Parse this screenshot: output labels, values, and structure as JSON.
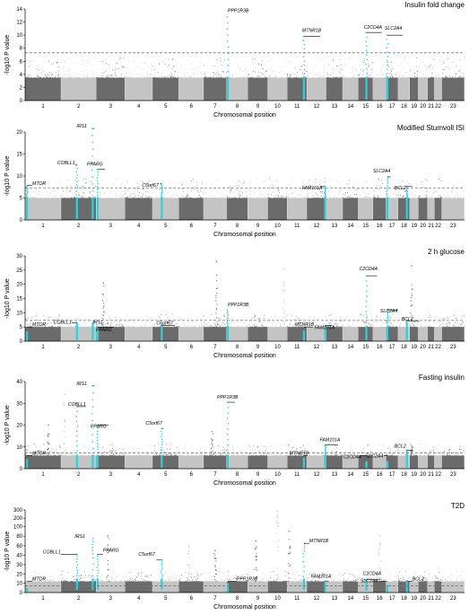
{
  "colors": {
    "dark_chrom": "#6b6b6b",
    "light_chrom": "#c4c4c4",
    "highlight": "#2fd0dc",
    "threshold": "#777777",
    "label_line": "#000000"
  },
  "y_axis_label": "-log10 P value",
  "x_axis_label": "Chromosomal position",
  "chromosomes": [
    "1",
    "2",
    "3",
    "4",
    "5",
    "6",
    "7",
    "8",
    "9",
    "10",
    "11",
    "12",
    "13",
    "14",
    "15",
    "16",
    "17",
    "18",
    "19",
    "20",
    "21",
    "22",
    "23"
  ],
  "chart_data": [
    {
      "type": "scatter",
      "title": "Insulin fold change",
      "xlabel": "Chromosomal position",
      "ylabel": "-log10 P value",
      "ylim": [
        0,
        14
      ],
      "yticks": [
        0,
        2,
        4,
        6,
        8,
        10,
        12,
        14
      ],
      "threshold": 7.3,
      "background_peak": 3.5,
      "grid": false,
      "loci": [
        {
          "gene": "PPP1R3B",
          "chrom": 8,
          "pos": 0.05,
          "p": 12.8
        },
        {
          "gene": "MTNR1B",
          "chrom": 11,
          "pos": 0.85,
          "p": 9.8
        },
        {
          "gene": "C2CD4A",
          "chrom": 15,
          "pos": 0.55,
          "p": 10.4
        },
        {
          "gene": "SLC2A4",
          "chrom": 17,
          "pos": 0.1,
          "p": 10.0
        }
      ]
    },
    {
      "type": "scatter",
      "title": "Modified Stumvoll ISI",
      "xlabel": "Chromosomal position",
      "ylabel": "-log10 P value",
      "ylim": [
        0,
        20
      ],
      "yticks": [
        0,
        5,
        10,
        15,
        20
      ],
      "threshold": 7.3,
      "background_peak": 5,
      "grid": false,
      "loci": [
        {
          "gene": "MTOR",
          "chrom": 1,
          "pos": 0.05,
          "p": 7.8
        },
        {
          "gene": "IRS1",
          "chrom": 2,
          "pos": 0.9,
          "p": 20.8
        },
        {
          "gene": "COBLL1",
          "chrom": 2,
          "pos": 0.45,
          "p": 12.5
        },
        {
          "gene": "PPARG",
          "chrom": 3,
          "pos": 0.05,
          "p": 11.5
        },
        {
          "gene": "C5orf67",
          "chrom": 5,
          "pos": 0.35,
          "p": 8.2
        },
        {
          "gene": "FAM101A",
          "chrom": 12,
          "pos": 0.95,
          "p": 7.6
        },
        {
          "gene": "SLC2A4",
          "chrom": 17,
          "pos": 0.1,
          "p": 9.8
        },
        {
          "gene": "BCL2",
          "chrom": 18,
          "pos": 0.75,
          "p": 7.6
        }
      ]
    },
    {
      "type": "scatter",
      "title": "2 h glucose",
      "xlabel": "Chromosomal position",
      "ylabel": "-log10 P value",
      "ylim": [
        0,
        30
      ],
      "yticks": [
        0,
        5,
        10,
        15,
        20,
        25,
        30
      ],
      "threshold": 7.3,
      "background_peak": 5,
      "grid": false,
      "loci": [
        {
          "gene": "MTOR",
          "chrom": 1,
          "pos": 0.05,
          "p": 3.5
        },
        {
          "gene": "COBLL1",
          "chrom": 2,
          "pos": 0.45,
          "p": 6.5
        },
        {
          "gene": "IRS1",
          "chrom": 2,
          "pos": 0.9,
          "p": 6.5
        },
        {
          "gene": "PPARG",
          "chrom": 3,
          "pos": 0.05,
          "p": 5.0
        },
        {
          "gene": "C5orf67",
          "chrom": 5,
          "pos": 0.35,
          "p": 5.5
        },
        {
          "gene": "PPP1R3B",
          "chrom": 8,
          "pos": 0.05,
          "p": 11.0
        },
        {
          "gene": "MTNR1B",
          "chrom": 11,
          "pos": 0.85,
          "p": 3.8
        },
        {
          "gene": "FAM101A",
          "chrom": 12,
          "pos": 0.95,
          "p": 5.5
        },
        {
          "gene": "C2CD4A",
          "chrom": 15,
          "pos": 0.55,
          "p": 23.0
        },
        {
          "gene": "SLC2A4",
          "chrom": 17,
          "pos": 0.1,
          "p": 11.0
        },
        {
          "gene": "BCL2",
          "chrom": 18,
          "pos": 0.75,
          "p": 7.0
        }
      ],
      "background_spikes": [
        {
          "chrom": 3,
          "pos": 0.25,
          "p": 20.5
        },
        {
          "chrom": 7,
          "pos": 0.55,
          "p": 28.0
        },
        {
          "chrom": 10,
          "pos": 0.85,
          "p": 25.5
        },
        {
          "chrom": 19,
          "pos": 0.2,
          "p": 26.5
        }
      ]
    },
    {
      "type": "scatter",
      "title": "Fasting insulin",
      "xlabel": "Chromosomal position",
      "ylabel": "-log10 P value",
      "ylim": [
        0,
        40
      ],
      "yticks": [
        0,
        10,
        20,
        30,
        40
      ],
      "threshold": 7.3,
      "background_peak": 6,
      "grid": false,
      "loci": [
        {
          "gene": "MTOR",
          "chrom": 1,
          "pos": 0.05,
          "p": 4.5
        },
        {
          "gene": "IRS1",
          "chrom": 2,
          "pos": 0.9,
          "p": 38.0
        },
        {
          "gene": "COBLL1",
          "chrom": 2,
          "pos": 0.45,
          "p": 28.5
        },
        {
          "gene": "PPARG",
          "chrom": 3,
          "pos": 0.05,
          "p": 20.0
        },
        {
          "gene": "C5orf67",
          "chrom": 5,
          "pos": 0.35,
          "p": 18.5
        },
        {
          "gene": "PPP1R3B",
          "chrom": 8,
          "pos": 0.05,
          "p": 30.5
        },
        {
          "gene": "MTNR1B",
          "chrom": 11,
          "pos": 0.85,
          "p": 5.0
        },
        {
          "gene": "FAM101A",
          "chrom": 12,
          "pos": 0.95,
          "p": 11.0
        },
        {
          "gene": "C2CD4A",
          "chrom": 15,
          "pos": 0.55,
          "p": 3.5
        },
        {
          "gene": "SLC2A4",
          "chrom": 17,
          "pos": 0.1,
          "p": 3.5
        },
        {
          "gene": "BCL2",
          "chrom": 18,
          "pos": 0.75,
          "p": 8.5
        }
      ],
      "background_spikes": [
        {
          "chrom": 2,
          "pos": 0.1,
          "p": 34.0
        },
        {
          "chrom": 1,
          "pos": 0.65,
          "p": 20.0
        },
        {
          "chrom": 7,
          "pos": 0.35,
          "p": 17.0
        },
        {
          "chrom": 19,
          "pos": 0.2,
          "p": 10.5
        }
      ]
    },
    {
      "type": "scatter",
      "title": "T2D",
      "xlabel": "Chromosomal position",
      "ylabel": "-log10 P value",
      "ylim": [
        0,
        300
      ],
      "scale": "broken",
      "yticks": [
        0,
        10,
        20,
        30,
        40,
        60,
        80,
        100,
        200,
        300
      ],
      "threshold": 7.3,
      "background_peak": 12,
      "grid": false,
      "loci": [
        {
          "gene": "MTOR",
          "chrom": 1,
          "pos": 0.05,
          "p": 5.0
        },
        {
          "gene": "COBLL1",
          "chrom": 2,
          "pos": 0.45,
          "p": 42.0
        },
        {
          "gene": "IRS1",
          "chrom": 2,
          "pos": 0.9,
          "p": 75.0
        },
        {
          "gene": "PPARG",
          "chrom": 3,
          "pos": 0.05,
          "p": 42.0
        },
        {
          "gene": "C5orf67",
          "chrom": 5,
          "pos": 0.35,
          "p": 35.0
        },
        {
          "gene": "PPP1R3B",
          "chrom": 8,
          "pos": 0.05,
          "p": 10.0
        },
        {
          "gene": "MTNR1B",
          "chrom": 11,
          "pos": 0.85,
          "p": 65.0
        },
        {
          "gene": "FAM101A",
          "chrom": 12,
          "pos": 0.95,
          "p": 12.0
        },
        {
          "gene": "C2CD4A",
          "chrom": 15,
          "pos": 0.55,
          "p": 14.0
        },
        {
          "gene": "SLC2A4",
          "chrom": 17,
          "pos": 0.1,
          "p": 8.0
        },
        {
          "gene": "BCL2",
          "chrom": 18,
          "pos": 0.75,
          "p": 12.0
        }
      ],
      "background_spikes": [
        {
          "chrom": 10,
          "pos": 0.5,
          "p": 280
        },
        {
          "chrom": 6,
          "pos": 0.4,
          "p": 60
        },
        {
          "chrom": 3,
          "pos": 0.4,
          "p": 80
        },
        {
          "chrom": 9,
          "pos": 0.4,
          "p": 70
        },
        {
          "chrom": 7,
          "pos": 0.5,
          "p": 50
        },
        {
          "chrom": 11,
          "pos": 0.1,
          "p": 90
        },
        {
          "chrom": 16,
          "pos": 0.5,
          "p": 80
        }
      ]
    }
  ]
}
